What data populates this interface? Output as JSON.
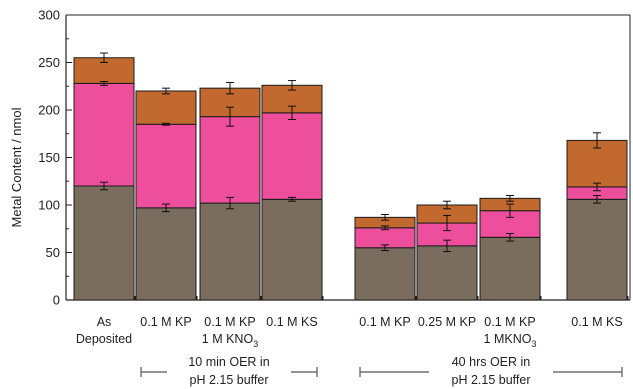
{
  "chart_data": {
    "type": "bar",
    "stacked": true,
    "title": "",
    "ylabel": "Metal Content / nmol",
    "ylim": [
      0,
      300
    ],
    "yticks": [
      0,
      50,
      100,
      150,
      200,
      250,
      300
    ],
    "grid": false,
    "categories": [
      [
        "As",
        "Deposited"
      ],
      [
        "0.1 M KP",
        ""
      ],
      [
        "0.1 M KP",
        "1 M KNO3"
      ],
      [
        "0.1 M KS",
        ""
      ],
      [
        "0.1 M KP",
        ""
      ],
      [
        "0.25 M KP",
        ""
      ],
      [
        "0.1 M KP",
        "1 MKNO3"
      ],
      [
        "0.1 M KS",
        ""
      ]
    ],
    "series": [
      {
        "color": "#7a6d5e",
        "values": [
          120,
          97,
          102,
          106,
          55,
          57,
          66,
          106
        ],
        "errors": [
          4,
          4,
          6,
          2,
          3,
          6,
          4,
          4
        ]
      },
      {
        "color": "#ee4f9d",
        "values": [
          108,
          88,
          91,
          91,
          21,
          24,
          28,
          13
        ],
        "errors": [
          2,
          1,
          10,
          7,
          2,
          8,
          7,
          4
        ]
      },
      {
        "color": "#c1692f",
        "values": [
          27,
          35,
          30,
          29,
          11,
          19,
          13,
          49
        ],
        "errors": [
          5,
          3,
          6,
          5,
          3,
          4,
          3,
          8
        ]
      }
    ],
    "groups": [
      {
        "line1": "10 min OER in",
        "line2": "pH 2.15 buffer",
        "from": 1,
        "to": 3
      },
      {
        "line1": "40 hrs OER in",
        "line2": "pH 2.15 buffer",
        "from": 4,
        "to": 7
      }
    ]
  }
}
